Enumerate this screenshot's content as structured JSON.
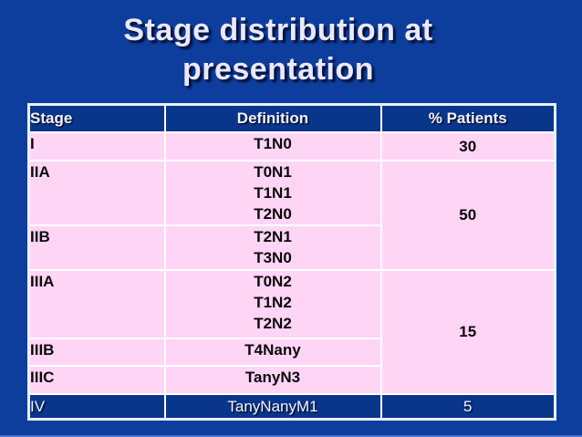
{
  "slide": {
    "title_line1": "Stage distribution at",
    "title_line2": "presentation"
  },
  "colors": {
    "slide_bg": "#0D3E9D",
    "table_header_bg": "#09368A",
    "row_pink": "#FFD5F6",
    "grid_line": "#FFFFFF",
    "outer_border": "#E8F1FB",
    "title_text": "#EAE8FA",
    "cell_text": "#0A0A0A",
    "header_text": "#F2F2FF",
    "bottom_edge": "#4C70C8"
  },
  "table": {
    "headers": [
      "Stage",
      "Definition",
      "% Patients"
    ],
    "rows": [
      {
        "stage": "I",
        "definition": "T1N0",
        "pct": "30"
      },
      {
        "stage": "IIA",
        "definition": "T0N1\nT1N1\nT2N0",
        "pct": "50"
      },
      {
        "stage": "IIB",
        "definition": "T2N1\nT3N0"
      },
      {
        "stage": "IIIA",
        "definition": "T0N2\nT1N2\nT2N2",
        "pct": "15"
      },
      {
        "stage": "IIIB",
        "definition": "T4Nany"
      },
      {
        "stage": "IIIC",
        "definition": "TanyN3"
      },
      {
        "stage": "IV",
        "definition": "TanyNanyM1",
        "pct": "5"
      }
    ]
  }
}
